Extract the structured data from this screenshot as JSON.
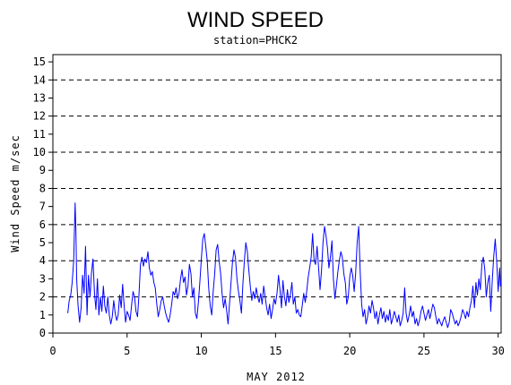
{
  "chart_data": {
    "type": "line",
    "title": "WIND SPEED",
    "subtitle": "station=PHCK2",
    "xlabel": "MAY 2012",
    "ylabel": "Wind Speed m/sec",
    "xlim": [
      0,
      30.2
    ],
    "ylim": [
      0,
      15.4
    ],
    "x_ticks": [
      0,
      5,
      10,
      15,
      20,
      25,
      30
    ],
    "y_ticks": [
      0,
      1,
      2,
      3,
      4,
      5,
      6,
      7,
      8,
      9,
      10,
      11,
      12,
      13,
      14,
      15
    ],
    "grid_lines_y": [
      0,
      2,
      4,
      6,
      8,
      10,
      12,
      14
    ],
    "grid": "dashed horizontal",
    "line_color": "#0000ff",
    "series": [
      {
        "values": [
          [
            1.0,
            1.1
          ],
          [
            1.1,
            1.8
          ],
          [
            1.2,
            2.1
          ],
          [
            1.3,
            2.8
          ],
          [
            1.4,
            4.0
          ],
          [
            1.5,
            7.2
          ],
          [
            1.55,
            5.6
          ],
          [
            1.6,
            3.0
          ],
          [
            1.7,
            1.5
          ],
          [
            1.8,
            0.6
          ],
          [
            1.9,
            1.4
          ],
          [
            2.0,
            3.2
          ],
          [
            2.1,
            2.2
          ],
          [
            2.2,
            4.8
          ],
          [
            2.3,
            1.0
          ],
          [
            2.4,
            3.2
          ],
          [
            2.5,
            2.0
          ],
          [
            2.6,
            3.3
          ],
          [
            2.7,
            4.1
          ],
          [
            2.8,
            2.2
          ],
          [
            2.9,
            1.3
          ],
          [
            3.0,
            3.0
          ],
          [
            3.1,
            1.0
          ],
          [
            3.2,
            2.0
          ],
          [
            3.3,
            1.2
          ],
          [
            3.4,
            2.6
          ],
          [
            3.5,
            1.5
          ],
          [
            3.6,
            1.1
          ],
          [
            3.7,
            2.0
          ],
          [
            3.8,
            1.0
          ],
          [
            3.9,
            0.5
          ],
          [
            4.0,
            0.9
          ],
          [
            4.1,
            1.8
          ],
          [
            4.2,
            1.1
          ],
          [
            4.3,
            0.7
          ],
          [
            4.4,
            1.0
          ],
          [
            4.5,
            2.1
          ],
          [
            4.6,
            1.4
          ],
          [
            4.7,
            2.7
          ],
          [
            4.8,
            1.5
          ],
          [
            4.9,
            0.6
          ],
          [
            5.0,
            1.2
          ],
          [
            5.1,
            1.0
          ],
          [
            5.2,
            0.7
          ],
          [
            5.3,
            1.5
          ],
          [
            5.4,
            2.3
          ],
          [
            5.5,
            2.0
          ],
          [
            5.6,
            1.2
          ],
          [
            5.7,
            0.9
          ],
          [
            5.8,
            2.1
          ],
          [
            5.9,
            3.8
          ],
          [
            6.0,
            4.2
          ],
          [
            6.1,
            3.7
          ],
          [
            6.2,
            4.1
          ],
          [
            6.3,
            3.9
          ],
          [
            6.4,
            4.5
          ],
          [
            6.5,
            3.6
          ],
          [
            6.6,
            3.2
          ],
          [
            6.7,
            3.4
          ],
          [
            6.8,
            2.8
          ],
          [
            6.9,
            2.5
          ],
          [
            7.0,
            1.6
          ],
          [
            7.1,
            0.9
          ],
          [
            7.2,
            1.3
          ],
          [
            7.3,
            1.8
          ],
          [
            7.4,
            2.0
          ],
          [
            7.5,
            1.5
          ],
          [
            7.6,
            1.1
          ],
          [
            7.7,
            0.8
          ],
          [
            7.8,
            0.6
          ],
          [
            7.9,
            1.0
          ],
          [
            8.0,
            1.6
          ],
          [
            8.1,
            2.3
          ],
          [
            8.2,
            2.1
          ],
          [
            8.3,
            2.5
          ],
          [
            8.4,
            1.9
          ],
          [
            8.5,
            2.2
          ],
          [
            8.6,
            3.0
          ],
          [
            8.7,
            3.5
          ],
          [
            8.8,
            2.8
          ],
          [
            8.9,
            3.1
          ],
          [
            9.0,
            2.1
          ],
          [
            9.1,
            2.6
          ],
          [
            9.2,
            3.8
          ],
          [
            9.3,
            3.3
          ],
          [
            9.4,
            2.0
          ],
          [
            9.5,
            2.5
          ],
          [
            9.6,
            1.1
          ],
          [
            9.7,
            0.8
          ],
          [
            9.8,
            1.7
          ],
          [
            9.9,
            2.8
          ],
          [
            10.0,
            4.1
          ],
          [
            10.1,
            5.2
          ],
          [
            10.2,
            5.5
          ],
          [
            10.3,
            4.8
          ],
          [
            10.4,
            4.0
          ],
          [
            10.5,
            2.5
          ],
          [
            10.6,
            1.5
          ],
          [
            10.7,
            1.0
          ],
          [
            10.8,
            2.3
          ],
          [
            10.9,
            3.3
          ],
          [
            11.0,
            4.6
          ],
          [
            11.1,
            4.9
          ],
          [
            11.2,
            4.0
          ],
          [
            11.3,
            3.3
          ],
          [
            11.4,
            2.2
          ],
          [
            11.5,
            1.4
          ],
          [
            11.6,
            1.9
          ],
          [
            11.7,
            1.3
          ],
          [
            11.8,
            0.5
          ],
          [
            11.9,
            1.6
          ],
          [
            12.0,
            2.8
          ],
          [
            12.1,
            3.9
          ],
          [
            12.2,
            4.6
          ],
          [
            12.3,
            4.2
          ],
          [
            12.4,
            3.0
          ],
          [
            12.5,
            2.3
          ],
          [
            12.6,
            1.8
          ],
          [
            12.7,
            1.1
          ],
          [
            12.8,
            2.7
          ],
          [
            12.9,
            4.0
          ],
          [
            13.0,
            5.0
          ],
          [
            13.1,
            4.5
          ],
          [
            13.2,
            3.5
          ],
          [
            13.3,
            2.6
          ],
          [
            13.4,
            1.8
          ],
          [
            13.5,
            2.3
          ],
          [
            13.6,
            1.9
          ],
          [
            13.7,
            2.5
          ],
          [
            13.8,
            2.0
          ],
          [
            13.9,
            1.7
          ],
          [
            14.0,
            2.2
          ],
          [
            14.1,
            1.6
          ],
          [
            14.2,
            2.6
          ],
          [
            14.3,
            2.0
          ],
          [
            14.4,
            1.4
          ],
          [
            14.5,
            1.0
          ],
          [
            14.6,
            1.6
          ],
          [
            14.7,
            0.8
          ],
          [
            14.8,
            1.3
          ],
          [
            14.9,
            1.9
          ],
          [
            15.0,
            1.6
          ],
          [
            15.1,
            2.2
          ],
          [
            15.2,
            3.2
          ],
          [
            15.3,
            2.4
          ],
          [
            15.4,
            1.4
          ],
          [
            15.5,
            2.9
          ],
          [
            15.6,
            2.0
          ],
          [
            15.7,
            1.5
          ],
          [
            15.8,
            2.4
          ],
          [
            15.9,
            1.7
          ],
          [
            16.0,
            2.1
          ],
          [
            16.1,
            2.8
          ],
          [
            16.2,
            1.6
          ],
          [
            16.3,
            2.0
          ],
          [
            16.4,
            1.1
          ],
          [
            16.5,
            1.3
          ],
          [
            16.6,
            1.0
          ],
          [
            16.7,
            0.9
          ],
          [
            16.8,
            1.5
          ],
          [
            16.9,
            2.2
          ],
          [
            17.0,
            1.7
          ],
          [
            17.1,
            2.3
          ],
          [
            17.2,
            3.1
          ],
          [
            17.3,
            3.6
          ],
          [
            17.4,
            4.2
          ],
          [
            17.5,
            5.5
          ],
          [
            17.6,
            4.0
          ],
          [
            17.7,
            3.8
          ],
          [
            17.8,
            4.8
          ],
          [
            17.9,
            3.6
          ],
          [
            18.0,
            2.4
          ],
          [
            18.1,
            3.5
          ],
          [
            18.2,
            5.0
          ],
          [
            18.3,
            5.9
          ],
          [
            18.4,
            5.4
          ],
          [
            18.5,
            4.7
          ],
          [
            18.6,
            3.6
          ],
          [
            18.7,
            4.2
          ],
          [
            18.8,
            5.1
          ],
          [
            18.9,
            3.0
          ],
          [
            19.0,
            1.9
          ],
          [
            19.1,
            2.6
          ],
          [
            19.2,
            3.4
          ],
          [
            19.3,
            4.0
          ],
          [
            19.4,
            4.5
          ],
          [
            19.5,
            4.2
          ],
          [
            19.6,
            3.3
          ],
          [
            19.7,
            2.8
          ],
          [
            19.8,
            1.6
          ],
          [
            19.9,
            2.0
          ],
          [
            20.0,
            3.1
          ],
          [
            20.1,
            3.6
          ],
          [
            20.2,
            3.2
          ],
          [
            20.3,
            2.3
          ],
          [
            20.4,
            3.3
          ],
          [
            20.5,
            5.0
          ],
          [
            20.6,
            5.9
          ],
          [
            20.7,
            3.5
          ],
          [
            20.8,
            1.6
          ],
          [
            20.9,
            0.9
          ],
          [
            21.0,
            1.3
          ],
          [
            21.1,
            0.5
          ],
          [
            21.2,
            0.9
          ],
          [
            21.3,
            1.5
          ],
          [
            21.4,
            1.1
          ],
          [
            21.5,
            1.8
          ],
          [
            21.6,
            1.4
          ],
          [
            21.7,
            0.8
          ],
          [
            21.8,
            1.2
          ],
          [
            21.9,
            0.5
          ],
          [
            22.0,
            1.0
          ],
          [
            22.1,
            1.4
          ],
          [
            22.2,
            0.8
          ],
          [
            22.3,
            1.2
          ],
          [
            22.4,
            0.6
          ],
          [
            22.5,
            1.0
          ],
          [
            22.6,
            0.7
          ],
          [
            22.7,
            1.3
          ],
          [
            22.8,
            0.5
          ],
          [
            22.9,
            0.8
          ],
          [
            23.0,
            1.2
          ],
          [
            23.1,
            0.9
          ],
          [
            23.2,
            0.6
          ],
          [
            23.3,
            1.0
          ],
          [
            23.4,
            0.4
          ],
          [
            23.5,
            0.7
          ],
          [
            23.6,
            1.1
          ],
          [
            23.7,
            2.5
          ],
          [
            23.8,
            1.1
          ],
          [
            23.9,
            0.6
          ],
          [
            24.0,
            1.0
          ],
          [
            24.1,
            1.5
          ],
          [
            24.2,
            0.9
          ],
          [
            24.3,
            1.2
          ],
          [
            24.4,
            0.5
          ],
          [
            24.5,
            0.8
          ],
          [
            24.6,
            0.4
          ],
          [
            24.7,
            0.7
          ],
          [
            24.8,
            1.2
          ],
          [
            24.9,
            1.5
          ],
          [
            25.0,
            1.1
          ],
          [
            25.1,
            0.7
          ],
          [
            25.2,
            1.0
          ],
          [
            25.3,
            1.3
          ],
          [
            25.4,
            0.8
          ],
          [
            25.5,
            1.2
          ],
          [
            25.6,
            1.6
          ],
          [
            25.7,
            1.4
          ],
          [
            25.8,
            0.9
          ],
          [
            25.9,
            0.5
          ],
          [
            26.0,
            0.8
          ],
          [
            26.1,
            0.6
          ],
          [
            26.2,
            0.4
          ],
          [
            26.3,
            0.7
          ],
          [
            26.4,
            0.9
          ],
          [
            26.5,
            0.6
          ],
          [
            26.6,
            0.3
          ],
          [
            26.7,
            0.6
          ],
          [
            26.8,
            1.3
          ],
          [
            26.9,
            1.1
          ],
          [
            27.0,
            0.8
          ],
          [
            27.1,
            0.5
          ],
          [
            27.2,
            0.7
          ],
          [
            27.3,
            0.4
          ],
          [
            27.4,
            0.6
          ],
          [
            27.5,
            0.9
          ],
          [
            27.6,
            1.3
          ],
          [
            27.7,
            1.1
          ],
          [
            27.8,
            0.8
          ],
          [
            27.9,
            1.2
          ],
          [
            28.0,
            0.9
          ],
          [
            28.1,
            1.4
          ],
          [
            28.2,
            1.8
          ],
          [
            28.3,
            2.6
          ],
          [
            28.4,
            1.4
          ],
          [
            28.5,
            2.8
          ],
          [
            28.6,
            2.1
          ],
          [
            28.7,
            3.0
          ],
          [
            28.8,
            2.4
          ],
          [
            28.9,
            3.8
          ],
          [
            29.0,
            4.2
          ],
          [
            29.1,
            3.5
          ],
          [
            29.2,
            2.0
          ],
          [
            29.3,
            2.8
          ],
          [
            29.4,
            3.2
          ],
          [
            29.5,
            1.2
          ],
          [
            29.6,
            2.9
          ],
          [
            29.7,
            4.2
          ],
          [
            29.8,
            5.2
          ],
          [
            29.9,
            4.0
          ],
          [
            30.0,
            2.3
          ],
          [
            30.1,
            3.6
          ],
          [
            30.15,
            2.6
          ],
          [
            30.2,
            2.9
          ]
        ]
      }
    ]
  }
}
